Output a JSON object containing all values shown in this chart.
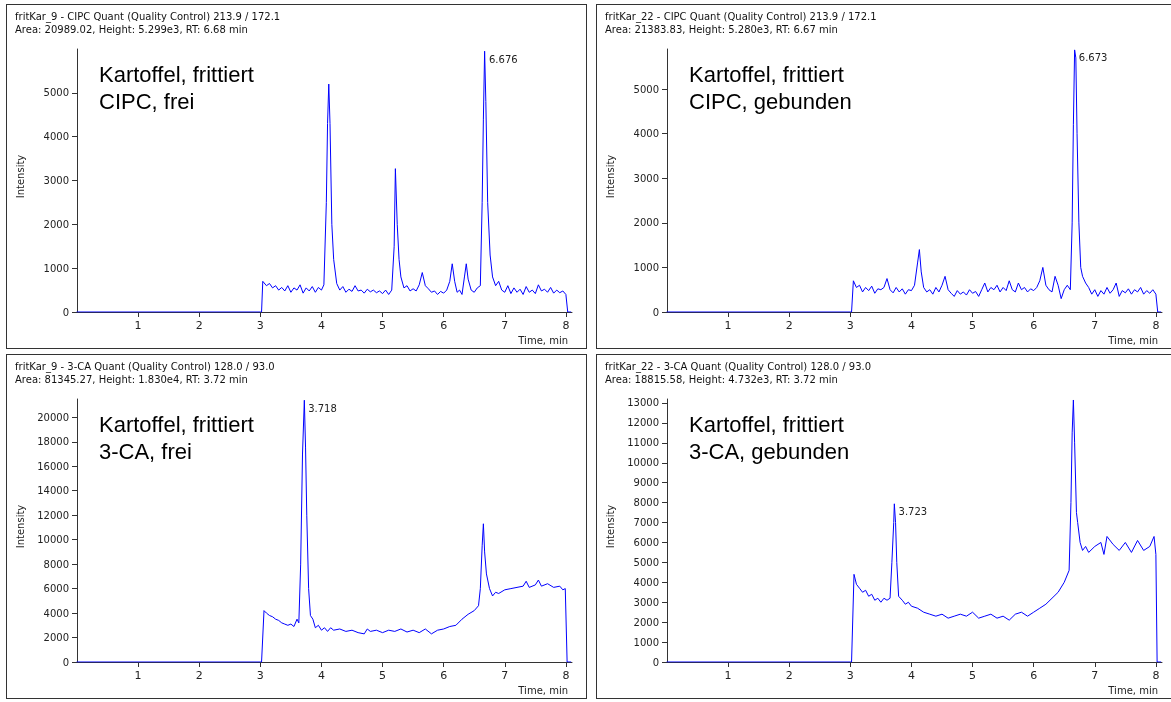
{
  "chart_data": [
    {
      "type": "line",
      "title": "fritKar_9 - CIPC Quant (Quality Control) 213.9 / 172.1",
      "subtitle": "Area: 20989.02, Height: 5.299e3, RT: 6.68 min",
      "xlabel": "Time, min",
      "ylabel": "Intensity",
      "annotations": [
        "Kartoffel, frittiert\nCIPC, frei",
        {
          "text": "6.676",
          "x": 6.676,
          "y": 5950
        }
      ],
      "xlim": [
        0,
        8.1
      ],
      "xticks": [
        1,
        2,
        3,
        4,
        5,
        6,
        7,
        8
      ],
      "ylim": [
        0,
        6000
      ],
      "yticks": [
        0,
        1000,
        2000,
        3000,
        4000,
        5000
      ],
      "grid": false,
      "marker": "none",
      "line_style": "solid",
      "series": [
        {
          "color": "#0000ff",
          "x": [
            0,
            3.0,
            3.02,
            3.04,
            3.1,
            3.15,
            3.2,
            3.25,
            3.3,
            3.35,
            3.4,
            3.45,
            3.5,
            3.55,
            3.6,
            3.65,
            3.7,
            3.75,
            3.8,
            3.85,
            3.9,
            3.95,
            4.0,
            4.04,
            4.08,
            4.1,
            4.12,
            4.14,
            4.17,
            4.2,
            4.25,
            4.3,
            4.35,
            4.4,
            4.45,
            4.5,
            4.55,
            4.6,
            4.65,
            4.7,
            4.75,
            4.8,
            4.85,
            4.9,
            4.95,
            5.0,
            5.05,
            5.1,
            5.15,
            5.19,
            5.21,
            5.24,
            5.27,
            5.3,
            5.35,
            5.4,
            5.45,
            5.5,
            5.55,
            5.6,
            5.65,
            5.7,
            5.75,
            5.8,
            5.85,
            5.9,
            5.95,
            6.0,
            6.05,
            6.1,
            6.14,
            6.18,
            6.22,
            6.26,
            6.3,
            6.34,
            6.37,
            6.4,
            6.45,
            6.5,
            6.55,
            6.6,
            6.63,
            6.65,
            6.67,
            6.69,
            6.72,
            6.76,
            6.8,
            6.85,
            6.9,
            6.95,
            7.0,
            7.05,
            7.1,
            7.15,
            7.2,
            7.25,
            7.3,
            7.35,
            7.4,
            7.45,
            7.5,
            7.55,
            7.6,
            7.65,
            7.7,
            7.75,
            7.8,
            7.85,
            7.9,
            7.95,
            8.0,
            8.03,
            8.08
          ],
          "values": [
            0,
            0,
            0,
            700,
            600,
            650,
            550,
            600,
            500,
            560,
            480,
            600,
            450,
            550,
            500,
            620,
            430,
            550,
            480,
            580,
            450,
            560,
            500,
            620,
            2500,
            4300,
            5200,
            4300,
            2000,
            1200,
            650,
            500,
            580,
            450,
            520,
            470,
            600,
            480,
            500,
            430,
            520,
            460,
            500,
            440,
            480,
            420,
            500,
            400,
            500,
            1500,
            3270,
            2000,
            1200,
            800,
            550,
            600,
            480,
            530,
            480,
            620,
            900,
            600,
            530,
            450,
            480,
            400,
            470,
            430,
            500,
            700,
            1100,
            700,
            450,
            500,
            400,
            800,
            1100,
            750,
            500,
            450,
            550,
            600,
            2500,
            4400,
            5950,
            4800,
            2500,
            1300,
            800,
            600,
            700,
            500,
            450,
            600,
            420,
            550,
            450,
            520,
            400,
            580,
            450,
            500,
            420,
            620,
            480,
            520,
            450,
            560,
            430,
            500,
            440,
            480,
            400,
            0,
            0
          ]
        }
      ]
    },
    {
      "type": "line",
      "title": "fritKar_22 - CIPC Quant (Quality Control) 213.9 / 172.1",
      "subtitle": "Area: 21383.83, Height: 5.280e3, RT: 6.67 min",
      "xlabel": "Time, min",
      "ylabel": "Intensity",
      "annotations": [
        "Kartoffel, frittiert\nCIPC, gebunden",
        {
          "text": "6.673",
          "x": 6.673,
          "y": 5880
        }
      ],
      "xlim": [
        0,
        8.1
      ],
      "xticks": [
        1,
        2,
        3,
        4,
        5,
        6,
        7,
        8
      ],
      "ylim": [
        0,
        5900
      ],
      "yticks": [
        0,
        1000,
        2000,
        3000,
        4000,
        5000
      ],
      "grid": false,
      "marker": "none",
      "line_style": "solid",
      "series": [
        {
          "color": "#0000ff",
          "x": [
            0,
            3.02,
            3.05,
            3.1,
            3.15,
            3.2,
            3.25,
            3.3,
            3.35,
            3.4,
            3.45,
            3.5,
            3.55,
            3.6,
            3.65,
            3.7,
            3.75,
            3.8,
            3.85,
            3.9,
            3.95,
            4.0,
            4.05,
            4.1,
            4.13,
            4.16,
            4.2,
            4.25,
            4.3,
            4.35,
            4.4,
            4.45,
            4.5,
            4.55,
            4.6,
            4.65,
            4.7,
            4.75,
            4.8,
            4.85,
            4.9,
            4.95,
            5.0,
            5.05,
            5.1,
            5.15,
            5.2,
            5.25,
            5.3,
            5.35,
            5.4,
            5.45,
            5.5,
            5.55,
            5.6,
            5.65,
            5.7,
            5.75,
            5.8,
            5.85,
            5.9,
            5.95,
            6.0,
            6.05,
            6.1,
            6.15,
            6.2,
            6.25,
            6.3,
            6.35,
            6.4,
            6.45,
            6.5,
            6.55,
            6.6,
            6.63,
            6.65,
            6.67,
            6.69,
            6.71,
            6.74,
            6.77,
            6.8,
            6.85,
            6.9,
            6.95,
            7.0,
            7.05,
            7.1,
            7.15,
            7.2,
            7.25,
            7.3,
            7.35,
            7.4,
            7.45,
            7.5,
            7.55,
            7.6,
            7.65,
            7.7,
            7.75,
            7.8,
            7.85,
            7.9,
            7.95,
            8.0,
            8.03,
            8.08
          ],
          "values": [
            0,
            0,
            700,
            550,
            600,
            450,
            550,
            480,
            580,
            420,
            520,
            500,
            550,
            750,
            500,
            430,
            550,
            450,
            520,
            400,
            500,
            480,
            600,
            1100,
            1400,
            900,
            550,
            450,
            500,
            400,
            550,
            450,
            600,
            800,
            500,
            420,
            350,
            480,
            400,
            450,
            380,
            500,
            420,
            460,
            350,
            500,
            650,
            450,
            550,
            500,
            600,
            450,
            550,
            480,
            700,
            500,
            450,
            650,
            500,
            550,
            450,
            520,
            480,
            550,
            700,
            1000,
            600,
            500,
            450,
            800,
            600,
            300,
            500,
            600,
            500,
            2000,
            4200,
            5880,
            5700,
            4000,
            2000,
            1000,
            800,
            650,
            550,
            400,
            500,
            350,
            480,
            400,
            550,
            420,
            500,
            650,
            350,
            480,
            430,
            520,
            400,
            500,
            450,
            550,
            400,
            480,
            420,
            500,
            400,
            0,
            0
          ]
        }
      ]
    },
    {
      "type": "line",
      "title": "fritKar_9 - 3-CA Quant (Quality Control) 128.0 / 93.0",
      "subtitle": "Area: 81345.27, Height: 1.830e4, RT: 3.72 min",
      "xlabel": "Time, min",
      "ylabel": "Intensity",
      "annotations": [
        "Kartoffel, frittiert\n3-CA, frei",
        {
          "text": "3.718",
          "x": 3.718,
          "y": 21400
        }
      ],
      "xlim": [
        0,
        8.1
      ],
      "xticks": [
        1,
        2,
        3,
        4,
        5,
        6,
        7,
        8
      ],
      "ylim": [
        0,
        21500
      ],
      "yticks": [
        0,
        2000,
        4000,
        6000,
        8000,
        10000,
        12000,
        14000,
        16000,
        18000,
        20000
      ],
      "grid": false,
      "marker": "none",
      "line_style": "solid",
      "series": [
        {
          "color": "#0000ff",
          "x": [
            0,
            3.02,
            3.06,
            3.1,
            3.15,
            3.2,
            3.25,
            3.3,
            3.35,
            3.4,
            3.45,
            3.5,
            3.55,
            3.6,
            3.63,
            3.66,
            3.69,
            3.72,
            3.74,
            3.76,
            3.79,
            3.82,
            3.86,
            3.9,
            3.95,
            4.0,
            4.05,
            4.1,
            4.15,
            4.2,
            4.3,
            4.4,
            4.5,
            4.6,
            4.7,
            4.75,
            4.8,
            4.9,
            5.0,
            5.1,
            5.2,
            5.3,
            5.4,
            5.5,
            5.6,
            5.7,
            5.8,
            5.9,
            6.0,
            6.1,
            6.2,
            6.3,
            6.4,
            6.5,
            6.57,
            6.6,
            6.63,
            6.65,
            6.67,
            6.7,
            6.75,
            6.8,
            6.85,
            6.9,
            7.0,
            7.1,
            7.2,
            7.3,
            7.35,
            7.4,
            7.5,
            7.55,
            7.6,
            7.7,
            7.8,
            7.9,
            7.95,
            7.99,
            8.02,
            8.08
          ],
          "values": [
            0,
            0,
            4200,
            4000,
            3800,
            3700,
            3500,
            3400,
            3200,
            3100,
            3000,
            3100,
            2900,
            3500,
            3200,
            8000,
            17000,
            21400,
            17500,
            12000,
            6000,
            3800,
            3500,
            2800,
            3000,
            2600,
            2800,
            2500,
            2800,
            2600,
            2700,
            2500,
            2600,
            2400,
            2300,
            2700,
            2500,
            2600,
            2400,
            2600,
            2500,
            2700,
            2450,
            2600,
            2400,
            2700,
            2300,
            2600,
            2700,
            2900,
            3000,
            3500,
            3900,
            4200,
            4600,
            6000,
            9500,
            11300,
            9000,
            7200,
            6000,
            5400,
            5700,
            5600,
            5900,
            6000,
            6100,
            6200,
            6600,
            6100,
            6300,
            6700,
            6200,
            6400,
            6100,
            6200,
            5900,
            6000,
            0,
            0
          ]
        }
      ]
    },
    {
      "type": "line",
      "title": "fritKar_22 - 3-CA Quant (Quality Control) 128.0 / 93.0",
      "subtitle": "Area: 18815.58, Height: 4.732e3, RT: 3.72 min",
      "xlabel": "Time, min",
      "ylabel": "Intensity",
      "annotations": [
        "Kartoffel, frittiert\n3-CA, gebunden",
        {
          "text": "3.723",
          "x": 3.723,
          "y": 7940
        }
      ],
      "xlim": [
        0,
        8.1
      ],
      "xticks": [
        1,
        2,
        3,
        4,
        5,
        6,
        7,
        8
      ],
      "ylim": [
        0,
        13200
      ],
      "yticks": [
        0,
        1000,
        2000,
        3000,
        4000,
        5000,
        6000,
        7000,
        8000,
        9000,
        10000,
        11000,
        12000,
        13000
      ],
      "grid": false,
      "marker": "none",
      "line_style": "solid",
      "series": [
        {
          "color": "#0000ff",
          "x": [
            0,
            3.02,
            3.06,
            3.1,
            3.15,
            3.2,
            3.25,
            3.3,
            3.35,
            3.4,
            3.45,
            3.5,
            3.55,
            3.6,
            3.65,
            3.68,
            3.71,
            3.72,
            3.74,
            3.76,
            3.79,
            3.85,
            3.9,
            3.95,
            4.0,
            4.1,
            4.2,
            4.3,
            4.4,
            4.5,
            4.6,
            4.7,
            4.8,
            4.9,
            5.0,
            5.1,
            5.2,
            5.3,
            5.4,
            5.5,
            5.6,
            5.7,
            5.8,
            5.9,
            6.0,
            6.1,
            6.2,
            6.3,
            6.4,
            6.5,
            6.58,
            6.61,
            6.63,
            6.65,
            6.67,
            6.7,
            6.72,
            6.76,
            6.8,
            6.85,
            6.9,
            7.0,
            7.1,
            7.15,
            7.2,
            7.3,
            7.4,
            7.5,
            7.6,
            7.7,
            7.8,
            7.9,
            7.97,
            8.0,
            8.02,
            8.08
          ],
          "values": [
            0,
            0,
            4400,
            3900,
            3700,
            3500,
            3600,
            3300,
            3400,
            3100,
            3200,
            3000,
            3200,
            3100,
            3200,
            5000,
            7000,
            7940,
            7000,
            5000,
            3300,
            3100,
            2900,
            3000,
            2800,
            2700,
            2500,
            2400,
            2300,
            2400,
            2200,
            2300,
            2400,
            2300,
            2500,
            2200,
            2300,
            2400,
            2200,
            2300,
            2100,
            2400,
            2500,
            2300,
            2500,
            2700,
            2900,
            3200,
            3500,
            4000,
            4600,
            8000,
            11500,
            13150,
            11000,
            7500,
            7000,
            6000,
            5600,
            5800,
            5500,
            5800,
            6000,
            5400,
            6300,
            5900,
            5600,
            6000,
            5500,
            6100,
            5600,
            5800,
            6300,
            5400,
            0,
            0
          ]
        }
      ]
    }
  ]
}
